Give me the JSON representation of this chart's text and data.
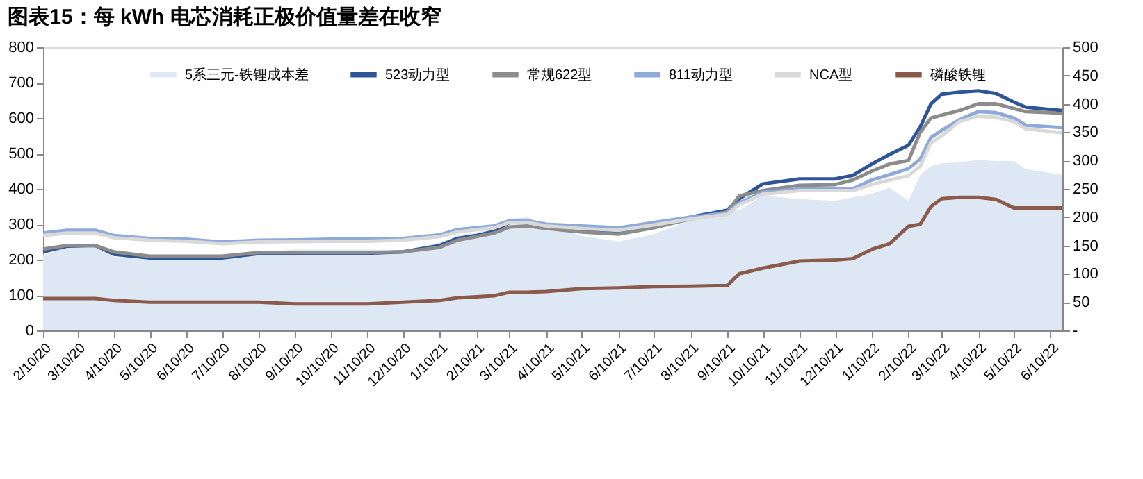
{
  "chart_data": {
    "type": "line",
    "title": "图表15：每 kWh 电芯消耗正极价值量差在收窄",
    "x": [
      "2020-02-10",
      "2020-03-01",
      "2020-03-25",
      "2020-04-10",
      "2020-05-10",
      "2020-06-10",
      "2020-07-10",
      "2020-08-10",
      "2020-09-10",
      "2020-10-10",
      "2020-11-10",
      "2020-12-10",
      "2021-01-10",
      "2021-01-25",
      "2021-02-10",
      "2021-02-25",
      "2021-03-10",
      "2021-03-25",
      "2021-04-10",
      "2021-05-10",
      "2021-06-10",
      "2021-07-10",
      "2021-08-10",
      "2021-09-10",
      "2021-09-20",
      "2021-10-10",
      "2021-11-10",
      "2021-12-10",
      "2021-12-25",
      "2022-01-10",
      "2022-01-25",
      "2022-02-10",
      "2022-02-20",
      "2022-03-01",
      "2022-03-10",
      "2022-03-25",
      "2022-04-10",
      "2022-04-25",
      "2022-05-10",
      "2022-05-20",
      "2022-06-10",
      "2022-06-20"
    ],
    "series": [
      {
        "name": "5系三元-铁锂成本差",
        "type": "area",
        "axis": "y2",
        "color": "#dde8f4",
        "values": [
          132,
          148,
          150,
          130,
          125,
          125,
          125,
          137,
          143,
          143,
          143,
          142,
          155,
          168,
          173,
          182,
          197,
          200,
          185,
          167,
          157,
          170,
          195,
          213,
          212,
          238,
          232,
          229,
          235,
          241,
          252,
          229,
          275,
          290,
          295,
          297,
          301,
          299,
          299,
          285,
          278,
          275
        ]
      },
      {
        "name": "523动力型",
        "color": "#2f5597",
        "values": [
          222,
          238,
          240,
          215,
          205,
          205,
          205,
          217,
          218,
          218,
          218,
          222,
          240,
          260,
          268,
          280,
          305,
          308,
          295,
          285,
          277,
          294,
          320,
          340,
          372,
          414,
          428,
          428,
          438,
          470,
          497,
          523,
          575,
          640,
          667,
          673,
          677,
          669,
          645,
          631,
          624,
          621
        ]
      },
      {
        "name": "常规622型",
        "color": "#8c8c8c",
        "values": [
          230,
          240,
          240,
          222,
          210,
          210,
          210,
          220,
          220,
          220,
          220,
          222,
          235,
          255,
          265,
          275,
          292,
          295,
          288,
          278,
          272,
          290,
          315,
          335,
          380,
          395,
          410,
          412,
          425,
          450,
          470,
          480,
          560,
          600,
          608,
          621,
          640,
          640,
          627,
          618,
          615,
          612
        ]
      },
      {
        "name": "811动力型",
        "color": "#8eaadb",
        "values": [
          275,
          283,
          283,
          268,
          260,
          258,
          250,
          255,
          256,
          258,
          258,
          260,
          270,
          285,
          290,
          295,
          310,
          310,
          300,
          295,
          290,
          305,
          320,
          332,
          360,
          390,
          400,
          400,
          400,
          425,
          440,
          457,
          484,
          545,
          565,
          595,
          618,
          615,
          600,
          580,
          575,
          573
        ]
      },
      {
        "name": "NCA型",
        "color": "#d9d9d9",
        "values": [
          268,
          275,
          275,
          262,
          255,
          252,
          245,
          250,
          251,
          252,
          252,
          255,
          265,
          278,
          285,
          290,
          305,
          305,
          295,
          288,
          283,
          298,
          315,
          328,
          355,
          385,
          395,
          395,
          395,
          412,
          425,
          437,
          464,
          530,
          549,
          590,
          605,
          602,
          590,
          570,
          562,
          558
        ]
      },
      {
        "name": "磷酸铁锂",
        "color": "#8b5a4a",
        "values": [
          90,
          90,
          90,
          85,
          80,
          80,
          80,
          80,
          75,
          75,
          75,
          80,
          85,
          92,
          95,
          98,
          108,
          108,
          110,
          118,
          120,
          124,
          125,
          127,
          160,
          176,
          196,
          199,
          203,
          229,
          245,
          294,
          300,
          350,
          372,
          376,
          376,
          370,
          346,
          346,
          346,
          346
        ]
      }
    ],
    "xlim": [
      "2020-02-10",
      "2022-06-20"
    ],
    "xticks": [
      {
        "value": "2020-02-10",
        "label": "2/10/20"
      },
      {
        "value": "2020-03-10",
        "label": "3/10/20"
      },
      {
        "value": "2020-04-10",
        "label": "4/10/20"
      },
      {
        "value": "2020-05-10",
        "label": "5/10/20"
      },
      {
        "value": "2020-06-10",
        "label": "6/10/20"
      },
      {
        "value": "2020-07-10",
        "label": "7/10/20"
      },
      {
        "value": "2020-08-10",
        "label": "8/10/20"
      },
      {
        "value": "2020-09-10",
        "label": "9/10/20"
      },
      {
        "value": "2020-10-10",
        "label": "10/10/20"
      },
      {
        "value": "2020-11-10",
        "label": "11/10/20"
      },
      {
        "value": "2020-12-10",
        "label": "12/10/20"
      },
      {
        "value": "2021-01-10",
        "label": "1/10/21"
      },
      {
        "value": "2021-02-10",
        "label": "2/10/21"
      },
      {
        "value": "2021-03-10",
        "label": "3/10/21"
      },
      {
        "value": "2021-04-10",
        "label": "4/10/21"
      },
      {
        "value": "2021-05-10",
        "label": "5/10/21"
      },
      {
        "value": "2021-06-10",
        "label": "6/10/21"
      },
      {
        "value": "2021-07-10",
        "label": "7/10/21"
      },
      {
        "value": "2021-08-10",
        "label": "8/10/21"
      },
      {
        "value": "2021-09-10",
        "label": "9/10/21"
      },
      {
        "value": "2021-10-10",
        "label": "10/10/21"
      },
      {
        "value": "2021-11-10",
        "label": "11/10/21"
      },
      {
        "value": "2021-12-10",
        "label": "12/10/21"
      },
      {
        "value": "2022-01-10",
        "label": "1/10/22"
      },
      {
        "value": "2022-02-10",
        "label": "2/10/22"
      },
      {
        "value": "2022-03-10",
        "label": "3/10/22"
      },
      {
        "value": "2022-04-10",
        "label": "4/10/22"
      },
      {
        "value": "2022-05-10",
        "label": "5/10/22"
      },
      {
        "value": "2022-06-10",
        "label": "6/10/22"
      }
    ],
    "ylim": [
      0,
      800
    ],
    "yticks": [
      0,
      100,
      200,
      300,
      400,
      500,
      600,
      700,
      800
    ],
    "y2lim": [
      0,
      500
    ],
    "y2ticks": [
      {
        "value": 0,
        "label": "-"
      },
      50,
      100,
      150,
      200,
      250,
      300,
      350,
      400,
      450,
      500
    ],
    "legend": "top",
    "grid": false
  }
}
